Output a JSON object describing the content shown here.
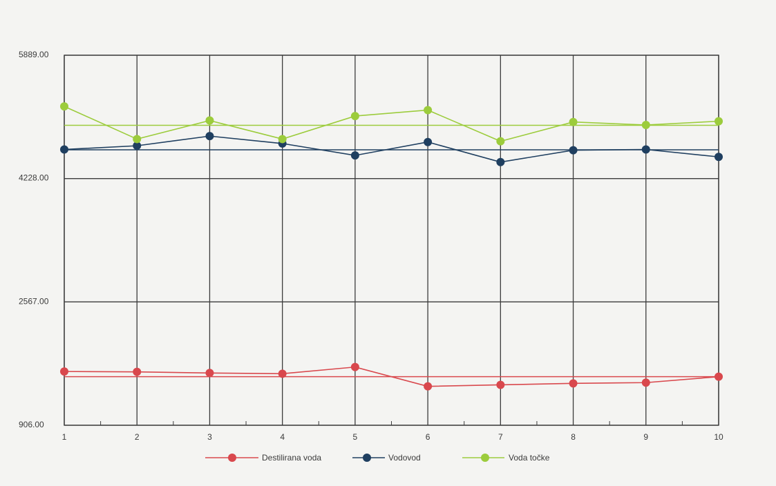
{
  "chart_data": {
    "type": "line",
    "x": [
      1,
      2,
      3,
      4,
      5,
      6,
      7,
      8,
      9,
      10
    ],
    "xlim": [
      1,
      10
    ],
    "ylim": [
      906,
      5889
    ],
    "yticks": [
      "5889.00",
      "4228.00",
      "2567.00",
      "906.00"
    ],
    "ytick_values": [
      5889,
      4228,
      2567,
      906
    ],
    "xticks": [
      "1",
      "2",
      "3",
      "4",
      "5",
      "6",
      "7",
      "8",
      "9",
      "10"
    ],
    "grid": true,
    "legend_position": "bottom",
    "series": [
      {
        "name": "Destilirana voda",
        "color": "#d9484d",
        "values": [
          1630,
          1625,
          1610,
          1600,
          1690,
          1430,
          1450,
          1470,
          1480,
          1560
        ],
        "reference": 1560
      },
      {
        "name": "Vodovod",
        "color": "#1f3f60",
        "values": [
          4620,
          4670,
          4800,
          4700,
          4540,
          4720,
          4450,
          4610,
          4620,
          4520
        ],
        "reference": 4615
      },
      {
        "name": "Voda točke",
        "color": "#9ccc3c",
        "values": [
          5200,
          4760,
          5010,
          4760,
          5070,
          5150,
          4730,
          4990,
          4950,
          5000
        ],
        "reference": 4945
      }
    ]
  }
}
